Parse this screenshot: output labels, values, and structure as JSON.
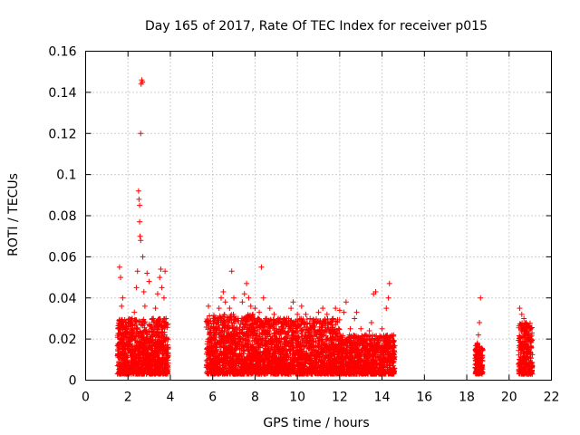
{
  "chart_data": {
    "type": "scatter",
    "title": "Day 165 of 2017, Rate Of TEC Index for receiver p015",
    "xlabel": "GPS time / hours",
    "ylabel": "ROTI / TECUs",
    "xlim": [
      0,
      22
    ],
    "ylim": [
      0,
      0.16
    ],
    "xticks": [
      0,
      2,
      4,
      6,
      8,
      10,
      12,
      14,
      16,
      18,
      20,
      22
    ],
    "xtick_labels": [
      "0",
      "2",
      "4",
      "6",
      "8",
      "10",
      "12",
      "14",
      "16",
      "18",
      "20",
      "22"
    ],
    "yticks": [
      0,
      0.02,
      0.04,
      0.06,
      0.08,
      0.1,
      0.12,
      0.14,
      0.16
    ],
    "ytick_labels": [
      "0",
      "0.02",
      "0.04",
      "0.06",
      "0.08",
      "0.1",
      "0.12",
      "0.14",
      "0.16"
    ],
    "grid": true,
    "marker": "+",
    "marker_color": "#ff0000",
    "series": [
      {
        "name": "ROTI",
        "points": [
          [
            1.5,
            0.012
          ],
          [
            1.55,
            0.025
          ],
          [
            1.6,
            0.018
          ],
          [
            1.6,
            0.055
          ],
          [
            1.65,
            0.05
          ],
          [
            1.7,
            0.036
          ],
          [
            1.75,
            0.04
          ],
          [
            1.8,
            0.02
          ],
          [
            1.9,
            0.028
          ],
          [
            2.0,
            0.015
          ],
          [
            2.1,
            0.022
          ],
          [
            2.2,
            0.03
          ],
          [
            2.3,
            0.033
          ],
          [
            2.4,
            0.045
          ],
          [
            2.45,
            0.053
          ],
          [
            2.5,
            0.092
          ],
          [
            2.52,
            0.088
          ],
          [
            2.55,
            0.085
          ],
          [
            2.55,
            0.077
          ],
          [
            2.57,
            0.07
          ],
          [
            2.6,
            0.068
          ],
          [
            2.6,
            0.12
          ],
          [
            2.62,
            0.144
          ],
          [
            2.65,
            0.146
          ],
          [
            2.68,
            0.145
          ],
          [
            2.7,
            0.06
          ],
          [
            2.75,
            0.043
          ],
          [
            2.8,
            0.036
          ],
          [
            2.9,
            0.052
          ],
          [
            3.0,
            0.048
          ],
          [
            3.1,
            0.025
          ],
          [
            3.2,
            0.03
          ],
          [
            3.3,
            0.035
          ],
          [
            3.4,
            0.042
          ],
          [
            3.5,
            0.05
          ],
          [
            3.55,
            0.054
          ],
          [
            3.6,
            0.045
          ],
          [
            3.7,
            0.04
          ],
          [
            3.75,
            0.053
          ],
          [
            3.8,
            0.03
          ],
          [
            5.8,
            0.036
          ],
          [
            5.9,
            0.025
          ],
          [
            6.0,
            0.02
          ],
          [
            6.1,
            0.03
          ],
          [
            6.2,
            0.028
          ],
          [
            6.3,
            0.035
          ],
          [
            6.4,
            0.04
          ],
          [
            6.5,
            0.043
          ],
          [
            6.6,
            0.038
          ],
          [
            6.8,
            0.035
          ],
          [
            6.9,
            0.053
          ],
          [
            7.0,
            0.04
          ],
          [
            7.2,
            0.03
          ],
          [
            7.4,
            0.038
          ],
          [
            7.5,
            0.042
          ],
          [
            7.6,
            0.047
          ],
          [
            7.7,
            0.04
          ],
          [
            7.8,
            0.036
          ],
          [
            7.9,
            0.032
          ],
          [
            8.0,
            0.035
          ],
          [
            8.1,
            0.02
          ],
          [
            8.2,
            0.033
          ],
          [
            8.3,
            0.055
          ],
          [
            8.4,
            0.04
          ],
          [
            8.5,
            0.03
          ],
          [
            8.7,
            0.035
          ],
          [
            8.9,
            0.032
          ],
          [
            9.1,
            0.03
          ],
          [
            9.3,
            0.028
          ],
          [
            9.5,
            0.03
          ],
          [
            9.7,
            0.035
          ],
          [
            9.8,
            0.038
          ],
          [
            10.0,
            0.032
          ],
          [
            10.2,
            0.036
          ],
          [
            10.4,
            0.032
          ],
          [
            10.6,
            0.03
          ],
          [
            10.8,
            0.028
          ],
          [
            11.0,
            0.033
          ],
          [
            11.2,
            0.035
          ],
          [
            11.4,
            0.032
          ],
          [
            11.6,
            0.028
          ],
          [
            11.8,
            0.035
          ],
          [
            12.0,
            0.034
          ],
          [
            12.2,
            0.033
          ],
          [
            12.3,
            0.038
          ],
          [
            12.5,
            0.025
          ],
          [
            12.7,
            0.03
          ],
          [
            12.8,
            0.033
          ],
          [
            13.0,
            0.025
          ],
          [
            13.2,
            0.022
          ],
          [
            13.4,
            0.024
          ],
          [
            13.5,
            0.028
          ],
          [
            13.6,
            0.042
          ],
          [
            13.7,
            0.043
          ],
          [
            13.8,
            0.02
          ],
          [
            14.0,
            0.025
          ],
          [
            14.1,
            0.02
          ],
          [
            14.2,
            0.035
          ],
          [
            14.3,
            0.04
          ],
          [
            14.35,
            0.047
          ],
          [
            18.5,
            0.018
          ],
          [
            18.55,
            0.022
          ],
          [
            18.6,
            0.028
          ],
          [
            18.65,
            0.04
          ],
          [
            18.7,
            0.015
          ],
          [
            20.5,
            0.035
          ],
          [
            20.6,
            0.032
          ],
          [
            20.7,
            0.03
          ],
          [
            20.8,
            0.028
          ],
          [
            20.9,
            0.022
          ],
          [
            21.0,
            0.02
          ]
        ]
      }
    ],
    "dense_bands": [
      {
        "x_range": [
          1.5,
          3.9
        ],
        "y_range": [
          0.003,
          0.03
        ],
        "count": 1100
      },
      {
        "x_range": [
          5.7,
          8.0
        ],
        "y_range": [
          0.003,
          0.032
        ],
        "count": 1000
      },
      {
        "x_range": [
          8.0,
          12.0
        ],
        "y_range": [
          0.003,
          0.03
        ],
        "count": 1700
      },
      {
        "x_range": [
          12.0,
          14.6
        ],
        "y_range": [
          0.003,
          0.022
        ],
        "count": 1000
      },
      {
        "x_range": [
          18.4,
          18.75
        ],
        "y_range": [
          0.003,
          0.018
        ],
        "count": 160
      },
      {
        "x_range": [
          20.45,
          21.1
        ],
        "y_range": [
          0.003,
          0.028
        ],
        "count": 300
      }
    ]
  }
}
